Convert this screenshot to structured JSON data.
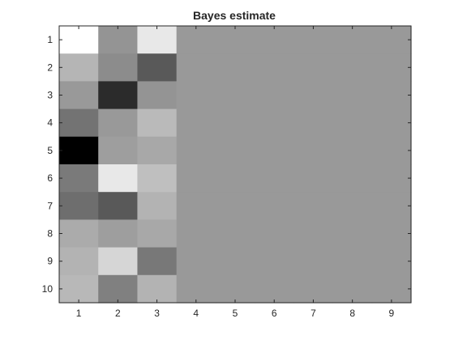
{
  "chart_data": {
    "type": "heatmap",
    "title": "Bayes estimate",
    "colormap": "gray",
    "grid": false,
    "xlabel": "",
    "ylabel": "",
    "x_ticks": [
      "1",
      "2",
      "3",
      "4",
      "5",
      "6",
      "7",
      "8",
      "9"
    ],
    "y_ticks": [
      "1",
      "2",
      "3",
      "4",
      "5",
      "6",
      "7",
      "8",
      "9",
      "10"
    ],
    "rows": [
      [
        1.0,
        0.58,
        0.91,
        0.6,
        0.6,
        0.6,
        0.6,
        0.6,
        0.6
      ],
      [
        0.71,
        0.55,
        0.35,
        0.6,
        0.6,
        0.6,
        0.6,
        0.6,
        0.6
      ],
      [
        0.6,
        0.17,
        0.58,
        0.6,
        0.6,
        0.6,
        0.6,
        0.6,
        0.6
      ],
      [
        0.45,
        0.6,
        0.73,
        0.6,
        0.6,
        0.6,
        0.6,
        0.6,
        0.6
      ],
      [
        0.0,
        0.62,
        0.66,
        0.6,
        0.6,
        0.6,
        0.6,
        0.6,
        0.6
      ],
      [
        0.48,
        0.91,
        0.75,
        0.6,
        0.6,
        0.6,
        0.6,
        0.6,
        0.6
      ],
      [
        0.43,
        0.35,
        0.7,
        0.6,
        0.6,
        0.6,
        0.6,
        0.6,
        0.6
      ],
      [
        0.67,
        0.62,
        0.66,
        0.6,
        0.6,
        0.6,
        0.6,
        0.6,
        0.6
      ],
      [
        0.7,
        0.84,
        0.47,
        0.6,
        0.6,
        0.6,
        0.6,
        0.6,
        0.6
      ],
      [
        0.72,
        0.5,
        0.7,
        0.6,
        0.6,
        0.6,
        0.6,
        0.6,
        0.6
      ]
    ]
  }
}
